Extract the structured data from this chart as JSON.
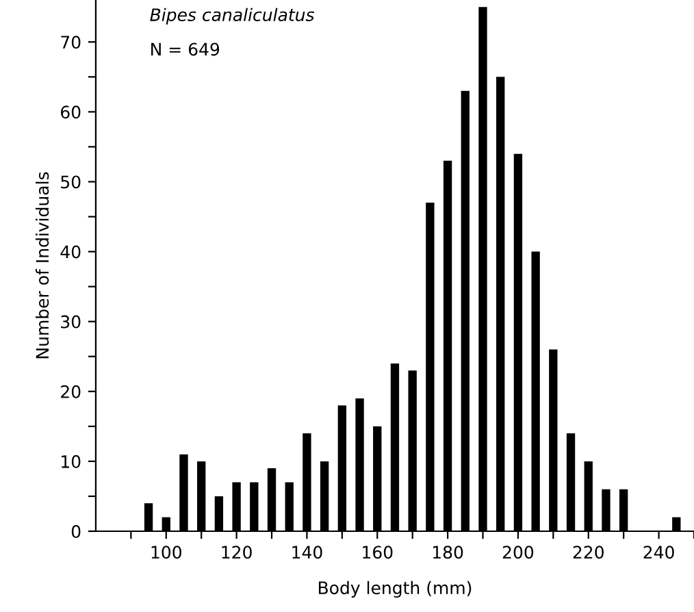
{
  "chart_data": {
    "type": "bar",
    "xlabel": "Body length (mm)",
    "ylabel": "Number of Individuals",
    "annotations": [
      "Bipes canaliculatus",
      "N = 649"
    ],
    "x": [
      95,
      100,
      105,
      110,
      115,
      120,
      125,
      130,
      135,
      140,
      145,
      150,
      155,
      160,
      165,
      170,
      175,
      180,
      185,
      190,
      195,
      200,
      205,
      210,
      215,
      220,
      225,
      230,
      235,
      240,
      245
    ],
    "values": [
      4,
      2,
      11,
      10,
      5,
      7,
      7,
      9,
      7,
      14,
      10,
      18,
      19,
      15,
      24,
      23,
      47,
      53,
      63,
      75,
      65,
      54,
      40,
      26,
      14,
      10,
      6,
      6,
      0,
      0,
      2
    ],
    "color": "#000000",
    "xlim": [
      80,
      250
    ],
    "xticks": [
      {
        "value": 90,
        "label": null
      },
      100,
      {
        "value": 110,
        "label": null
      },
      120,
      {
        "value": 130,
        "label": null
      },
      140,
      {
        "value": 150,
        "label": null
      },
      160,
      {
        "value": 170,
        "label": null
      },
      180,
      {
        "value": 190,
        "label": null
      },
      200,
      {
        "value": 210,
        "label": null
      },
      220,
      {
        "value": 230,
        "label": null
      },
      240,
      {
        "value": 250,
        "label": null
      }
    ],
    "ylim": [
      0,
      76
    ],
    "yticks": [
      0,
      {
        "value": 5,
        "label": null
      },
      10,
      {
        "value": 15,
        "label": null
      },
      20,
      {
        "value": 25,
        "label": null
      },
      30,
      {
        "value": 35,
        "label": null
      },
      40,
      {
        "value": 45,
        "label": null
      },
      50,
      {
        "value": 55,
        "label": null
      },
      60,
      {
        "value": 65,
        "label": null
      },
      70
    ],
    "grid": false,
    "legend": false
  }
}
